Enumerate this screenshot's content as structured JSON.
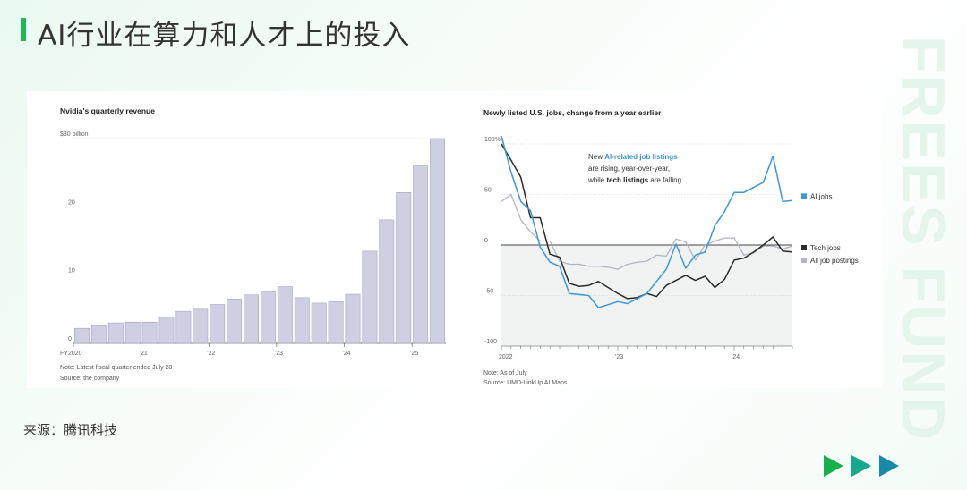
{
  "page": {
    "title": "AI行业在算力和人才上的投入",
    "source": "来源：腾讯科技",
    "watermark": "FREES FUND",
    "accent_color": "#1db954",
    "arrow_colors": [
      "#16b04a",
      "#15a88a",
      "#168aa8"
    ]
  },
  "chart_data": [
    {
      "type": "bar",
      "title": "Nvidia's quarterly revenue",
      "ylabel": "",
      "unit_label": "$30 billion",
      "y_ticks": [
        0,
        10,
        20,
        30
      ],
      "y_tick_labels": [
        "0",
        "10",
        "20",
        "$30 billion"
      ],
      "ylim": [
        0,
        30
      ],
      "x_tick_labels": [
        "FY2020",
        "'21",
        "'22",
        "'23",
        "'24",
        "'25"
      ],
      "values": [
        2.2,
        2.6,
        3.0,
        3.1,
        3.1,
        3.9,
        4.7,
        5.0,
        5.7,
        6.5,
        7.1,
        7.6,
        8.3,
        6.7,
        5.9,
        6.1,
        7.2,
        13.5,
        18.1,
        22.1,
        26.0,
        30.0
      ],
      "bar_color": "#cfcfe3",
      "bar_stroke": "#a3a3c2",
      "note": "Note: Latest fiscal quarter ended July 28",
      "source": "Source: the company"
    },
    {
      "type": "line",
      "title": "Newly listed U.S. jobs, change from a year earlier",
      "y_ticks": [
        100,
        50,
        0,
        -50,
        -100
      ],
      "y_tick_labels": [
        "100%",
        "50",
        "0",
        "-50",
        "-100"
      ],
      "ylim": [
        -100,
        100
      ],
      "x_tick_labels": [
        "2022",
        "'23",
        "'24"
      ],
      "x_tick_months": [
        0,
        12,
        24
      ],
      "xlim": [
        0,
        30
      ],
      "annotation": {
        "line1_pre": "New ",
        "line1_em": "AI-related job listings",
        "line2": "are rising, year-over-year,",
        "line3_pre": "while ",
        "line3_em": "tech listings",
        "line3_post": " are falling"
      },
      "series": [
        {
          "name": "AI jobs",
          "color": "#3d97d8",
          "x": [
            0,
            1,
            2,
            3,
            4,
            5,
            6,
            7,
            8,
            9,
            10,
            11,
            12,
            13,
            14,
            15,
            16,
            17,
            18,
            19,
            20,
            21,
            22,
            23,
            24,
            25,
            26,
            27,
            28,
            29,
            30
          ],
          "y": [
            108,
            72,
            43,
            34,
            -2,
            -17,
            -21,
            -48,
            -49,
            -50,
            -62,
            -59,
            -56,
            -58,
            -53,
            -48,
            -36,
            -24,
            1,
            -23,
            -10,
            -7,
            19,
            33,
            52,
            52,
            57,
            62,
            88,
            43,
            44
          ]
        },
        {
          "name": "Tech jobs",
          "color": "#2b2b2b",
          "x": [
            0,
            1,
            2,
            3,
            4,
            5,
            6,
            7,
            8,
            9,
            10,
            11,
            12,
            13,
            14,
            15,
            16,
            17,
            18,
            19,
            20,
            21,
            22,
            23,
            24,
            25,
            26,
            27,
            28,
            29,
            30
          ],
          "y": [
            100,
            84,
            67,
            27,
            27,
            -9,
            -12,
            -38,
            -41,
            -40,
            -36,
            -42,
            -48,
            -53,
            -52,
            -48,
            -51,
            -40,
            -35,
            -30,
            -35,
            -31,
            -42,
            -34,
            -15,
            -13,
            -7,
            0,
            8,
            -6,
            -7
          ]
        },
        {
          "name": "All job postings",
          "color": "#b3b3c2",
          "x": [
            0,
            1,
            2,
            3,
            4,
            5,
            6,
            7,
            8,
            9,
            10,
            11,
            12,
            13,
            14,
            15,
            16,
            17,
            18,
            19,
            20,
            21,
            22,
            23,
            24,
            25,
            26,
            27,
            28,
            29,
            30
          ],
          "y": [
            43,
            50,
            25,
            13,
            4,
            4,
            -16,
            -19,
            -19,
            -21,
            -21,
            -22,
            -24,
            -19,
            -17,
            -16,
            -10,
            -11,
            6,
            3,
            -15,
            0,
            4,
            7,
            7,
            -10,
            -8,
            -1,
            -1,
            -4,
            -1
          ]
        }
      ],
      "note": "Note: As of July",
      "source": "Source: UMD-LinkUp AI Maps"
    }
  ]
}
